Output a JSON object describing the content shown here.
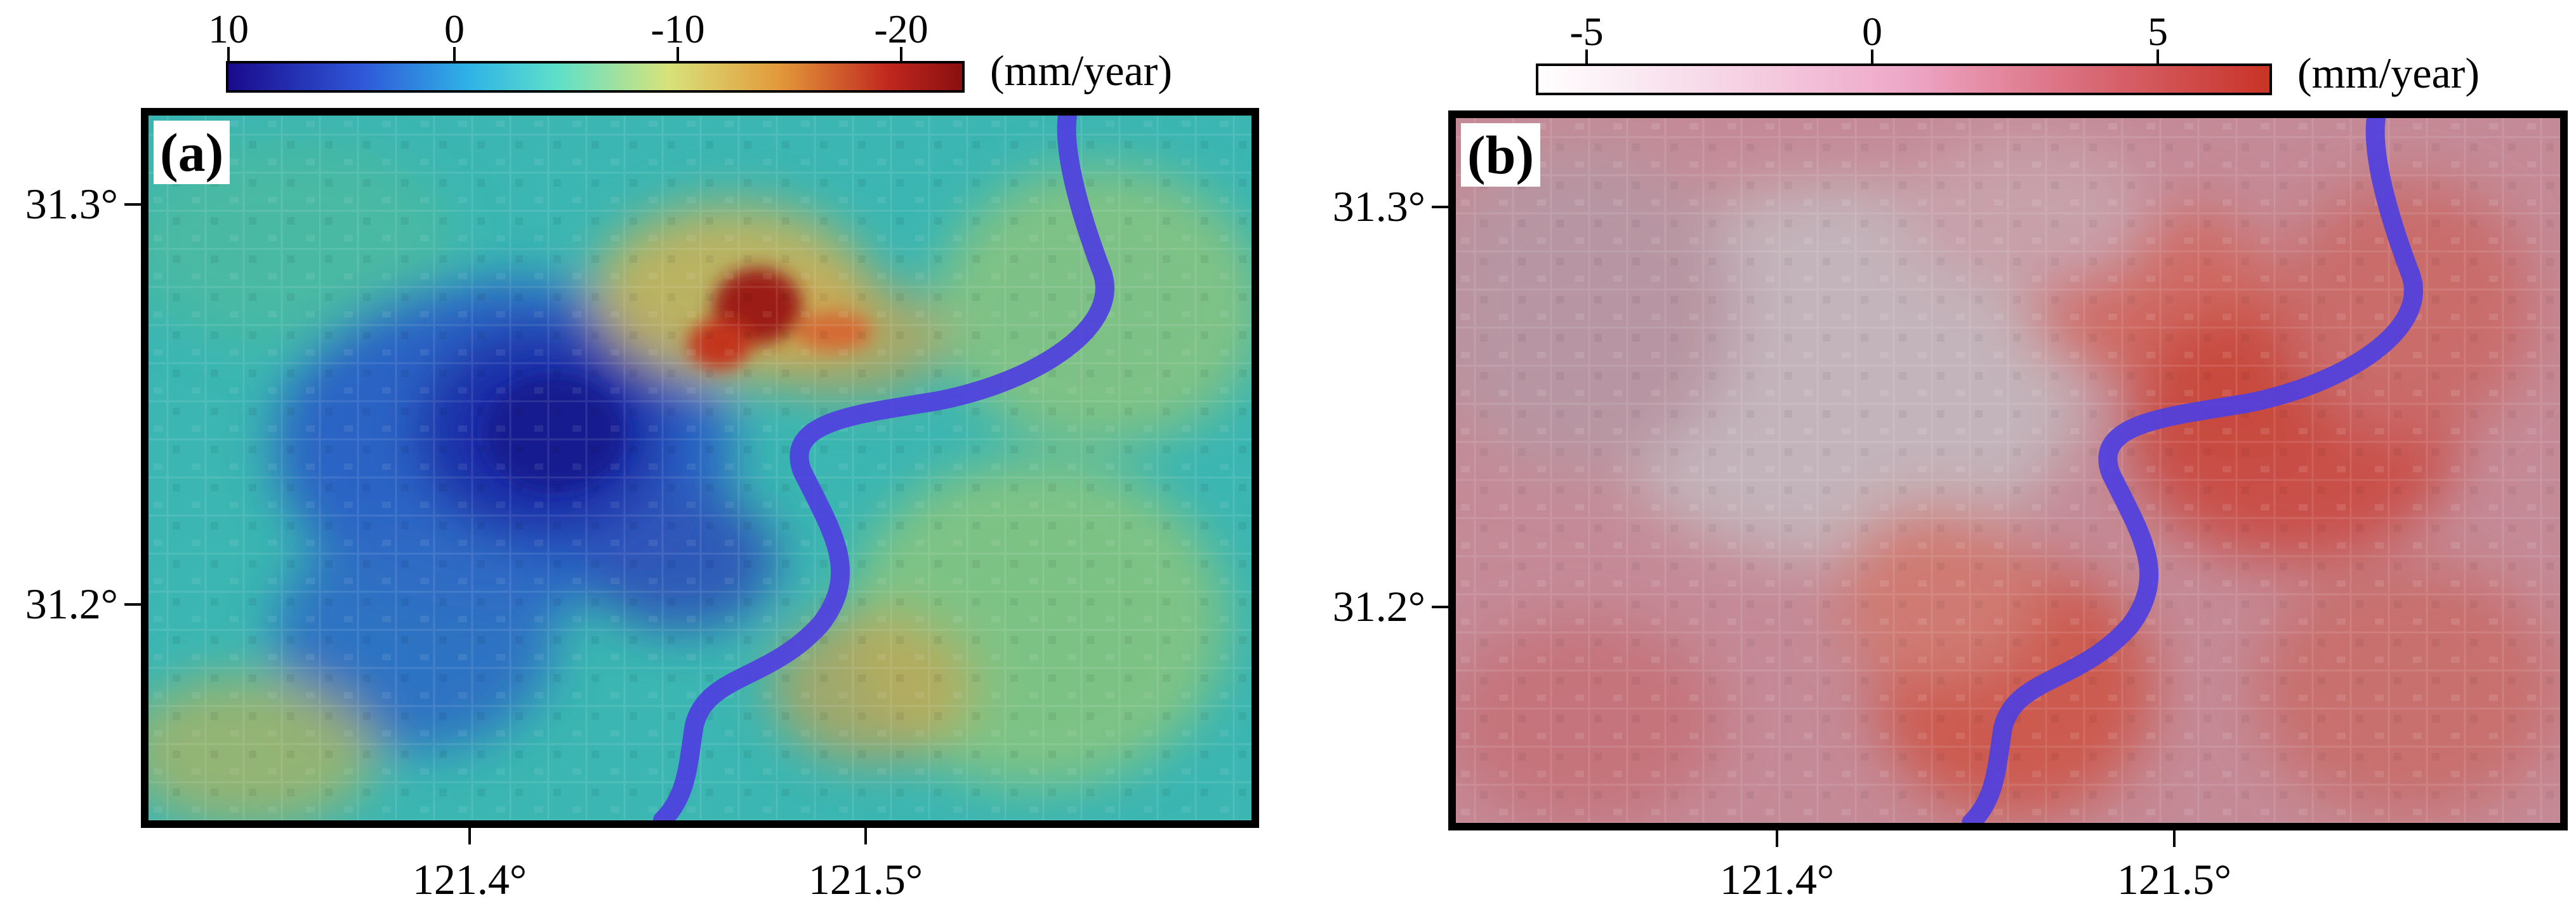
{
  "panels": [
    {
      "label": "(a)",
      "colorbar": {
        "ticks": [
          "10",
          "0",
          "-10",
          "-20"
        ],
        "units": "(mm/year)",
        "colormap": [
          "#1a0a8c",
          "#2f56d8",
          "#2fb4e6",
          "#5fe0c8",
          "#d8e27a",
          "#e39a3b",
          "#c0271e",
          "#8a0f10"
        ]
      },
      "lat_labels": [
        "31.3°",
        "31.2°"
      ],
      "lon_labels": [
        "121.4°",
        "121.5°"
      ]
    },
    {
      "label": "(b)",
      "colorbar": {
        "ticks": [
          "-5",
          "0",
          "5"
        ],
        "units": "(mm/year)",
        "colormap": [
          "#ffffff",
          "#f6d6e6",
          "#eea8c8",
          "#d96a78",
          "#c83326"
        ]
      },
      "lat_labels": [
        "31.3°",
        "31.2°"
      ],
      "lon_labels": [
        "121.4°",
        "121.5°"
      ]
    }
  ],
  "river_color": "#4f3fe0"
}
